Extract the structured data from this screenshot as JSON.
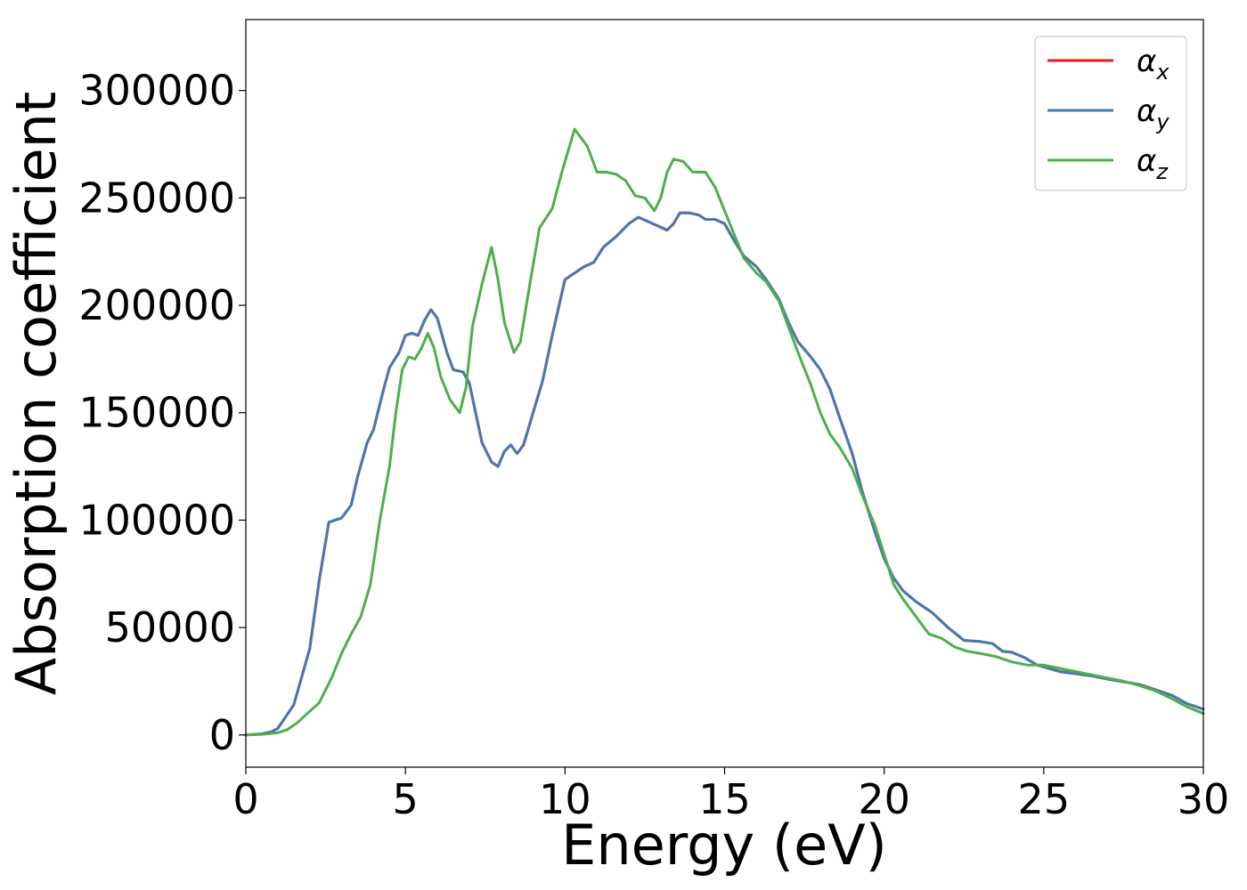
{
  "chart_data": {
    "type": "line",
    "title": "",
    "xlabel": "Energy (eV)",
    "ylabel": "Absorption coefficient",
    "xlim": [
      0,
      30
    ],
    "ylim": [
      -15000,
      333000
    ],
    "xticks": [
      0,
      5,
      10,
      15,
      20,
      25,
      30
    ],
    "yticks": [
      0,
      50000,
      100000,
      150000,
      200000,
      250000,
      300000
    ],
    "grid": false,
    "legend_position": "top-right",
    "series": [
      {
        "name": "x",
        "color": "#e41a1c",
        "points": [
          [
            0,
            0
          ],
          [
            0.5,
            500
          ],
          [
            0.8,
            1500
          ],
          [
            1,
            3000
          ],
          [
            1.5,
            14000
          ],
          [
            2,
            40000
          ],
          [
            2.3,
            72000
          ],
          [
            2.6,
            99000
          ],
          [
            3,
            101000
          ],
          [
            3.3,
            107000
          ],
          [
            3.5,
            120000
          ],
          [
            3.8,
            136000
          ],
          [
            4,
            142000
          ],
          [
            4.3,
            160000
          ],
          [
            4.5,
            171000
          ],
          [
            4.8,
            178000
          ],
          [
            5,
            186000
          ],
          [
            5.2,
            187000
          ],
          [
            5.4,
            186000
          ],
          [
            5.6,
            193000
          ],
          [
            5.8,
            198000
          ],
          [
            6,
            194000
          ],
          [
            6.3,
            178000
          ],
          [
            6.5,
            170000
          ],
          [
            6.8,
            169000
          ],
          [
            7,
            164000
          ],
          [
            7.2,
            150000
          ],
          [
            7.4,
            136000
          ],
          [
            7.7,
            127000
          ],
          [
            7.9,
            125000
          ],
          [
            8.1,
            132000
          ],
          [
            8.3,
            135000
          ],
          [
            8.5,
            131000
          ],
          [
            8.7,
            135000
          ],
          [
            9,
            150000
          ],
          [
            9.3,
            165000
          ],
          [
            9.6,
            186000
          ],
          [
            10,
            212000
          ],
          [
            10.3,
            215000
          ],
          [
            10.6,
            218000
          ],
          [
            10.9,
            220000
          ],
          [
            11.2,
            227000
          ],
          [
            11.6,
            232000
          ],
          [
            12,
            238000
          ],
          [
            12.3,
            241000
          ],
          [
            12.6,
            239000
          ],
          [
            12.9,
            237000
          ],
          [
            13.2,
            235000
          ],
          [
            13.4,
            238000
          ],
          [
            13.6,
            243000
          ],
          [
            13.9,
            243000
          ],
          [
            14.2,
            242000
          ],
          [
            14.4,
            240000
          ],
          [
            14.7,
            240000
          ],
          [
            15,
            238000
          ],
          [
            15.3,
            230000
          ],
          [
            15.6,
            223000
          ],
          [
            16,
            218000
          ],
          [
            16.3,
            212000
          ],
          [
            16.7,
            203000
          ],
          [
            17,
            192000
          ],
          [
            17.3,
            183000
          ],
          [
            17.7,
            176000
          ],
          [
            18,
            170000
          ],
          [
            18.3,
            161000
          ],
          [
            18.6,
            148000
          ],
          [
            19,
            131000
          ],
          [
            19.3,
            114000
          ],
          [
            19.7,
            95000
          ],
          [
            20,
            82000
          ],
          [
            20.3,
            73000
          ],
          [
            20.6,
            67000
          ],
          [
            21,
            62000
          ],
          [
            21.5,
            57000
          ],
          [
            22,
            50000
          ],
          [
            22.5,
            44000
          ],
          [
            23,
            43500
          ],
          [
            23.4,
            42500
          ],
          [
            23.7,
            39000
          ],
          [
            24,
            38500
          ],
          [
            24.4,
            36000
          ],
          [
            24.8,
            32500
          ],
          [
            25.5,
            29500
          ],
          [
            26,
            28500
          ],
          [
            26.5,
            27500
          ],
          [
            27,
            26000
          ],
          [
            28,
            23500
          ],
          [
            28.5,
            21000
          ],
          [
            29,
            18500
          ],
          [
            29.5,
            14500
          ],
          [
            30,
            12000
          ]
        ]
      },
      {
        "name": "y",
        "color": "#4878b0",
        "points": [
          [
            0,
            0
          ],
          [
            0.5,
            500
          ],
          [
            0.8,
            1500
          ],
          [
            1,
            3000
          ],
          [
            1.5,
            14000
          ],
          [
            2,
            40000
          ],
          [
            2.3,
            72000
          ],
          [
            2.6,
            99000
          ],
          [
            3,
            101000
          ],
          [
            3.3,
            107000
          ],
          [
            3.5,
            120000
          ],
          [
            3.8,
            136000
          ],
          [
            4,
            142000
          ],
          [
            4.3,
            160000
          ],
          [
            4.5,
            171000
          ],
          [
            4.8,
            178000
          ],
          [
            5,
            186000
          ],
          [
            5.2,
            187000
          ],
          [
            5.4,
            186000
          ],
          [
            5.6,
            193000
          ],
          [
            5.8,
            198000
          ],
          [
            6,
            194000
          ],
          [
            6.3,
            178000
          ],
          [
            6.5,
            170000
          ],
          [
            6.8,
            169000
          ],
          [
            7,
            164000
          ],
          [
            7.2,
            150000
          ],
          [
            7.4,
            136000
          ],
          [
            7.7,
            127000
          ],
          [
            7.9,
            125000
          ],
          [
            8.1,
            132000
          ],
          [
            8.3,
            135000
          ],
          [
            8.5,
            131000
          ],
          [
            8.7,
            135000
          ],
          [
            9,
            150000
          ],
          [
            9.3,
            165000
          ],
          [
            9.6,
            186000
          ],
          [
            10,
            212000
          ],
          [
            10.3,
            215000
          ],
          [
            10.6,
            218000
          ],
          [
            10.9,
            220000
          ],
          [
            11.2,
            227000
          ],
          [
            11.6,
            232000
          ],
          [
            12,
            238000
          ],
          [
            12.3,
            241000
          ],
          [
            12.6,
            239000
          ],
          [
            12.9,
            237000
          ],
          [
            13.2,
            235000
          ],
          [
            13.4,
            238000
          ],
          [
            13.6,
            243000
          ],
          [
            13.9,
            243000
          ],
          [
            14.2,
            242000
          ],
          [
            14.4,
            240000
          ],
          [
            14.7,
            240000
          ],
          [
            15,
            238000
          ],
          [
            15.3,
            230000
          ],
          [
            15.6,
            223000
          ],
          [
            16,
            218000
          ],
          [
            16.3,
            212000
          ],
          [
            16.7,
            203000
          ],
          [
            17,
            192000
          ],
          [
            17.3,
            183000
          ],
          [
            17.7,
            176000
          ],
          [
            18,
            170000
          ],
          [
            18.3,
            161000
          ],
          [
            18.6,
            148000
          ],
          [
            19,
            131000
          ],
          [
            19.3,
            114000
          ],
          [
            19.7,
            95000
          ],
          [
            20,
            82000
          ],
          [
            20.3,
            73000
          ],
          [
            20.6,
            67000
          ],
          [
            21,
            62000
          ],
          [
            21.5,
            57000
          ],
          [
            22,
            50000
          ],
          [
            22.5,
            44000
          ],
          [
            23,
            43500
          ],
          [
            23.4,
            42500
          ],
          [
            23.7,
            39000
          ],
          [
            24,
            38500
          ],
          [
            24.4,
            36000
          ],
          [
            24.8,
            32500
          ],
          [
            25.5,
            29500
          ],
          [
            26,
            28500
          ],
          [
            26.5,
            27500
          ],
          [
            27,
            26000
          ],
          [
            28,
            23500
          ],
          [
            28.5,
            21000
          ],
          [
            29,
            18500
          ],
          [
            29.5,
            14500
          ],
          [
            30,
            12000
          ]
        ]
      },
      {
        "name": "z",
        "color": "#4daf4a",
        "points": [
          [
            0,
            0
          ],
          [
            0.5,
            300
          ],
          [
            1,
            1000
          ],
          [
            1.3,
            2500
          ],
          [
            1.6,
            5500
          ],
          [
            2,
            11000
          ],
          [
            2.3,
            15000
          ],
          [
            2.7,
            27000
          ],
          [
            3,
            38000
          ],
          [
            3.3,
            47000
          ],
          [
            3.6,
            55000
          ],
          [
            3.9,
            70000
          ],
          [
            4.2,
            100000
          ],
          [
            4.5,
            125000
          ],
          [
            4.7,
            150000
          ],
          [
            4.9,
            170000
          ],
          [
            5.1,
            176000
          ],
          [
            5.3,
            175000
          ],
          [
            5.5,
            180000
          ],
          [
            5.7,
            187000
          ],
          [
            5.9,
            180000
          ],
          [
            6.1,
            167000
          ],
          [
            6.4,
            156000
          ],
          [
            6.7,
            150000
          ],
          [
            6.9,
            162000
          ],
          [
            7.1,
            190000
          ],
          [
            7.4,
            210000
          ],
          [
            7.7,
            227000
          ],
          [
            7.9,
            212000
          ],
          [
            8.1,
            192000
          ],
          [
            8.4,
            178000
          ],
          [
            8.6,
            183000
          ],
          [
            8.9,
            210000
          ],
          [
            9.2,
            236000
          ],
          [
            9.6,
            245000
          ],
          [
            9.9,
            262000
          ],
          [
            10.3,
            282000
          ],
          [
            10.7,
            274000
          ],
          [
            11,
            262000
          ],
          [
            11.3,
            262000
          ],
          [
            11.6,
            261000
          ],
          [
            11.9,
            258000
          ],
          [
            12.2,
            251000
          ],
          [
            12.5,
            250000
          ],
          [
            12.8,
            244000
          ],
          [
            13,
            250000
          ],
          [
            13.2,
            262000
          ],
          [
            13.4,
            268000
          ],
          [
            13.7,
            267000
          ],
          [
            14,
            262000
          ],
          [
            14.4,
            262000
          ],
          [
            14.7,
            255000
          ],
          [
            15,
            244000
          ],
          [
            15.3,
            233000
          ],
          [
            15.6,
            222000
          ],
          [
            16,
            215000
          ],
          [
            16.3,
            211000
          ],
          [
            16.7,
            202000
          ],
          [
            17,
            190000
          ],
          [
            17.3,
            178000
          ],
          [
            17.7,
            163000
          ],
          [
            18,
            150000
          ],
          [
            18.3,
            140000
          ],
          [
            18.6,
            134000
          ],
          [
            19,
            124000
          ],
          [
            19.3,
            112000
          ],
          [
            19.7,
            98000
          ],
          [
            20,
            84000
          ],
          [
            20.3,
            70000
          ],
          [
            20.6,
            63000
          ],
          [
            21,
            55000
          ],
          [
            21.4,
            47000
          ],
          [
            21.8,
            45000
          ],
          [
            22.2,
            41000
          ],
          [
            22.6,
            39000
          ],
          [
            23,
            38000
          ],
          [
            23.5,
            36500
          ],
          [
            24,
            34000
          ],
          [
            24.5,
            32500
          ],
          [
            25,
            32500
          ],
          [
            25.5,
            31000
          ],
          [
            26,
            29500
          ],
          [
            26.5,
            28000
          ],
          [
            27,
            26500
          ],
          [
            27.5,
            25000
          ],
          [
            28,
            23000
          ],
          [
            28.5,
            20500
          ],
          [
            29,
            17000
          ],
          [
            29.5,
            13000
          ],
          [
            30,
            10000
          ]
        ]
      }
    ],
    "legend": [
      {
        "base": "α",
        "sub": "x"
      },
      {
        "base": "α",
        "sub": "y"
      },
      {
        "base": "α",
        "sub": "z"
      }
    ]
  }
}
